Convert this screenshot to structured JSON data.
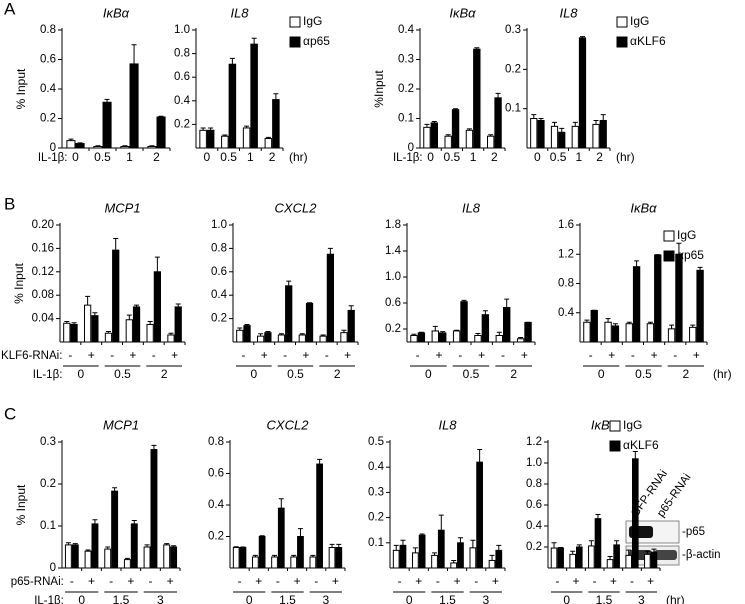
{
  "panels": [
    "A",
    "B",
    "C"
  ],
  "chart_data": [
    {
      "type": "bar",
      "title": "IκBα",
      "ylabel": "% Input",
      "x_labels": [
        "IL-1β:"
      ],
      "categories": [
        "0",
        "0.5",
        "1",
        "2"
      ],
      "series": [
        {
          "color": "#ffffff",
          "values": [
            0.05,
            0.01,
            0.01,
            0.01
          ],
          "errors": [
            0.01,
            0.005,
            0.005,
            0.005
          ]
        },
        {
          "color": "#000000",
          "values": [
            0.03,
            0.31,
            0.57,
            0.21
          ],
          "errors": [
            0.005,
            0.02,
            0.13,
            0.005
          ]
        }
      ],
      "ylim": [
        0,
        0.8
      ],
      "yticks": [
        0,
        0.2,
        0.4,
        0.6,
        0.8
      ]
    },
    {
      "type": "bar",
      "title": "IL8",
      "unit": "(hr)",
      "categories": [
        "0",
        "0.5",
        "1",
        "2"
      ],
      "legend": true,
      "series": [
        {
          "name": "IgG",
          "color": "#ffffff",
          "values": [
            0.15,
            0.1,
            0.17,
            0.08
          ],
          "errors": [
            0.02,
            0.01,
            0.015,
            0.01
          ]
        },
        {
          "name": "αp65",
          "color": "#000000",
          "values": [
            0.15,
            0.71,
            0.88,
            0.41
          ],
          "errors": [
            0.02,
            0.05,
            0.05,
            0.05
          ]
        }
      ],
      "ylim": [
        0,
        1
      ],
      "yticks": [
        0.2,
        0.4,
        0.6,
        0.8,
        {
          "value": 1,
          "label": "1.0"
        }
      ]
    },
    {
      "type": "bar",
      "title": "IκBα",
      "ylabel": "%Input",
      "x_labels": [
        "IL-1β:"
      ],
      "categories": [
        "0",
        "0.5",
        "1",
        "2"
      ],
      "series": [
        {
          "color": "#ffffff",
          "values": [
            0.07,
            0.04,
            0.06,
            0.04
          ],
          "errors": [
            0.01,
            0.005,
            0.005,
            0.005
          ]
        },
        {
          "color": "#000000",
          "values": [
            0.085,
            0.13,
            0.335,
            0.17
          ],
          "errors": [
            0.005,
            0.003,
            0.005,
            0.015
          ]
        }
      ],
      "ylim": [
        0,
        0.4
      ],
      "yticks": [
        0,
        0.1,
        0.2,
        0.3,
        0.4
      ]
    },
    {
      "type": "bar",
      "title": "IL8",
      "unit": "(hr)",
      "categories": [
        "0",
        "0.5",
        "1",
        "2"
      ],
      "legend": true,
      "series": [
        {
          "name": "IgG",
          "color": "#ffffff",
          "values": [
            0.075,
            0.055,
            0.055,
            0.06
          ],
          "errors": [
            0.01,
            0.01,
            0.01,
            0.01
          ]
        },
        {
          "name": "αKLF6",
          "color": "#000000",
          "values": [
            0.07,
            0.04,
            0.28,
            0.07
          ],
          "errors": [
            0.005,
            0.01,
            0.003,
            0.015
          ]
        }
      ],
      "ylim": [
        0,
        0.3
      ],
      "yticks": [
        0.1,
        0.2,
        0.3
      ]
    },
    {
      "type": "bar",
      "title": "MCP1",
      "ylabel": "% Input",
      "x_labels": [
        "KLF6-RNAi:",
        "IL-1β:"
      ],
      "categories": [
        "-",
        "+",
        "-",
        "+",
        "-",
        "+"
      ],
      "groups": [
        "0",
        "0.5",
        "2"
      ],
      "series": [
        {
          "color": "#ffffff",
          "values": [
            0.032,
            0.063,
            0.015,
            0.038,
            0.03,
            0.012
          ],
          "errors": [
            0.003,
            0.015,
            0.003,
            0.008,
            0.005,
            0.003
          ]
        },
        {
          "color": "#000000",
          "values": [
            0.03,
            0.045,
            0.157,
            0.06,
            0.12,
            0.06
          ],
          "errors": [
            0.003,
            0.005,
            0.02,
            0.003,
            0.025,
            0.005
          ]
        }
      ],
      "ylim": [
        0,
        0.2
      ],
      "yticks": [
        0.04,
        0.08,
        0.12,
        0.16,
        {
          "value": 0.2,
          "label": "0.20"
        }
      ]
    },
    {
      "type": "bar",
      "title": "CXCL2",
      "categories": [
        "-",
        "+",
        "-",
        "+",
        "-",
        "+"
      ],
      "groups": [
        "0",
        "0.5",
        "2"
      ],
      "series": [
        {
          "color": "#ffffff",
          "values": [
            0.1,
            0.05,
            0.06,
            0.06,
            0.05,
            0.08
          ],
          "errors": [
            0.02,
            0.02,
            0.01,
            0.01,
            0.01,
            0.02
          ]
        },
        {
          "color": "#000000",
          "values": [
            0.14,
            0.08,
            0.48,
            0.33,
            0.75,
            0.27
          ],
          "errors": [
            0.01,
            0.01,
            0.04,
            0.005,
            0.05,
            0.04
          ]
        }
      ],
      "ylim": [
        0,
        1
      ],
      "yticks": [
        0.2,
        0.4,
        0.6,
        0.8,
        {
          "value": 1,
          "label": "1.0"
        }
      ]
    },
    {
      "type": "bar",
      "title": "IL8",
      "categories": [
        "-",
        "+",
        "-",
        "+",
        "-",
        "+"
      ],
      "groups": [
        "0",
        "0.5",
        "2"
      ],
      "series": [
        {
          "color": "#ffffff",
          "values": [
            0.1,
            0.17,
            0.17,
            0.1,
            0.1,
            0.05
          ],
          "errors": [
            0.02,
            0.07,
            0.01,
            0.03,
            0.05,
            0.02
          ]
        },
        {
          "color": "#000000",
          "values": [
            0.14,
            0.14,
            0.62,
            0.42,
            0.53,
            0.3
          ],
          "errors": [
            0.01,
            0.02,
            0.02,
            0.06,
            0.13,
            0.003
          ]
        }
      ],
      "ylim": [
        0,
        1.8
      ],
      "yticks": [
        0.2,
        0.6,
        {
          "value": 1,
          "label": "1.0"
        },
        1.4,
        1.8
      ]
    },
    {
      "type": "bar",
      "title": "IκBα",
      "unit": "(hr)",
      "legend": true,
      "categories": [
        "-",
        "+",
        "-",
        "+",
        "-",
        "+"
      ],
      "groups": [
        "0",
        "0.5",
        "2"
      ],
      "series": [
        {
          "name": "IgG",
          "color": "#ffffff",
          "values": [
            0.27,
            0.27,
            0.25,
            0.25,
            0.18,
            0.2
          ],
          "errors": [
            0.03,
            0.05,
            0.02,
            0.02,
            0.05,
            0.03
          ]
        },
        {
          "name": "αp65",
          "color": "#000000",
          "values": [
            0.43,
            0.22,
            1.03,
            1.19,
            1.2,
            0.98
          ],
          "errors": [
            0.005,
            0.03,
            0.08,
            0.005,
            0.15,
            0.04
          ]
        }
      ],
      "ylim": [
        0,
        1.6
      ],
      "yticks": [
        0.4,
        0.8,
        1.2,
        1.6
      ]
    },
    {
      "type": "bar",
      "title": "MCP1",
      "ylabel": "% Input",
      "x_labels": [
        "p65-RNAi:",
        "IL-1β:"
      ],
      "categories": [
        "-",
        "+",
        "-",
        "+",
        "-",
        "+"
      ],
      "groups": [
        "0",
        "1.5",
        "3"
      ],
      "series": [
        {
          "color": "#ffffff",
          "values": [
            0.055,
            0.04,
            0.045,
            0.02,
            0.05,
            0.055
          ],
          "errors": [
            0.005,
            0.003,
            0.005,
            0.003,
            0.005,
            0.003
          ]
        },
        {
          "color": "#000000",
          "values": [
            0.055,
            0.105,
            0.183,
            0.105,
            0.282,
            0.05
          ],
          "errors": [
            0.003,
            0.01,
            0.008,
            0.008,
            0.01,
            0.003
          ]
        }
      ],
      "ylim": [
        0,
        0.3
      ],
      "yticks": [
        0,
        0.1,
        0.2,
        0.3
      ]
    },
    {
      "type": "bar",
      "title": "CXCL2",
      "categories": [
        "-",
        "+",
        "-",
        "+",
        "-",
        "+"
      ],
      "groups": [
        "0",
        "1.5",
        "3"
      ],
      "series": [
        {
          "color": "#ffffff",
          "values": [
            0.13,
            0.07,
            0.07,
            0.07,
            0.07,
            0.13
          ],
          "errors": [
            0.005,
            0.01,
            0.01,
            0.01,
            0.01,
            0.02
          ]
        },
        {
          "color": "#000000",
          "values": [
            0.13,
            0.2,
            0.38,
            0.2,
            0.66,
            0.13
          ],
          "errors": [
            0.003,
            0.005,
            0.06,
            0.05,
            0.03,
            0.02
          ]
        }
      ],
      "ylim": [
        0,
        0.8
      ],
      "yticks": [
        0.2,
        0.4,
        0.6,
        0.8
      ]
    },
    {
      "type": "bar",
      "title": "IL8",
      "categories": [
        "-",
        "+",
        "-",
        "+",
        "-",
        "+"
      ],
      "groups": [
        "0",
        "1.5",
        "3"
      ],
      "series": [
        {
          "color": "#ffffff",
          "values": [
            0.07,
            0.06,
            0.05,
            0.02,
            0.08,
            0.03
          ],
          "errors": [
            0.02,
            0.02,
            0.01,
            0.01,
            0.03,
            0.02
          ]
        },
        {
          "color": "#000000",
          "values": [
            0.09,
            0.13,
            0.15,
            0.1,
            0.42,
            0.07
          ],
          "errors": [
            0.02,
            0.005,
            0.06,
            0.02,
            0.05,
            0.02
          ]
        }
      ],
      "ylim": [
        0,
        0.5
      ],
      "yticks": [
        0.1,
        0.2,
        0.3,
        0.4,
        0.5
      ]
    },
    {
      "type": "bar",
      "title": "IκBα",
      "unit": "(hr)",
      "legend": true,
      "categories": [
        "-",
        "+",
        "-",
        "+",
        "-",
        "+"
      ],
      "groups": [
        "0",
        "1.5",
        "3"
      ],
      "series": [
        {
          "name": "IgG",
          "color": "#ffffff",
          "values": [
            0.19,
            0.13,
            0.21,
            0.08,
            0.12,
            0.13
          ],
          "errors": [
            0.05,
            0.03,
            0.05,
            0.03,
            0.05,
            0.03
          ]
        },
        {
          "name": "αKLF6",
          "color": "#000000",
          "values": [
            0.19,
            0.2,
            0.47,
            0.22,
            1.04,
            0.15
          ],
          "errors": [
            0.005,
            0.02,
            0.04,
            0.04,
            0.07,
            0.03
          ]
        }
      ],
      "ylim": [
        0,
        1.2
      ],
      "yticks": [
        0.2,
        0.4,
        0.6,
        0.8,
        {
          "value": 1,
          "label": "1.0"
        },
        1.2
      ]
    }
  ],
  "blot": {
    "lanes": [
      "GFP-RNAi",
      "p65-RNAi"
    ],
    "bands": [
      "-p65",
      "-β-actin"
    ]
  }
}
